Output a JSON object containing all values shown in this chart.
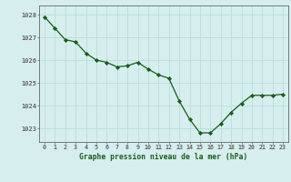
{
  "x": [
    0,
    1,
    2,
    3,
    4,
    5,
    6,
    7,
    8,
    9,
    10,
    11,
    12,
    13,
    14,
    15,
    16,
    17,
    18,
    19,
    20,
    21,
    22,
    23
  ],
  "y": [
    1027.9,
    1027.4,
    1026.9,
    1026.8,
    1026.3,
    1026.0,
    1025.9,
    1025.7,
    1025.75,
    1025.9,
    1025.6,
    1025.35,
    1025.2,
    1024.2,
    1023.4,
    1022.8,
    1022.8,
    1023.2,
    1023.7,
    1024.1,
    1024.45,
    1024.45,
    1024.45,
    1024.5
  ],
  "line_color": "#1a5c1a",
  "marker_color": "#1a5c1a",
  "bg_color": "#d6eeee",
  "grid_color": "#bbdddd",
  "axis_color": "#666666",
  "title": "Graphe pression niveau de la mer (hPa)",
  "title_color": "#1a5c1a",
  "xlabel_ticks": [
    0,
    1,
    2,
    3,
    4,
    5,
    6,
    7,
    8,
    9,
    10,
    11,
    12,
    13,
    14,
    15,
    16,
    17,
    18,
    19,
    20,
    21,
    22,
    23
  ],
  "ytick_labels": [
    1023,
    1024,
    1025,
    1026,
    1027,
    1028
  ],
  "ylim": [
    1022.4,
    1028.4
  ],
  "xlim": [
    -0.5,
    23.5
  ]
}
